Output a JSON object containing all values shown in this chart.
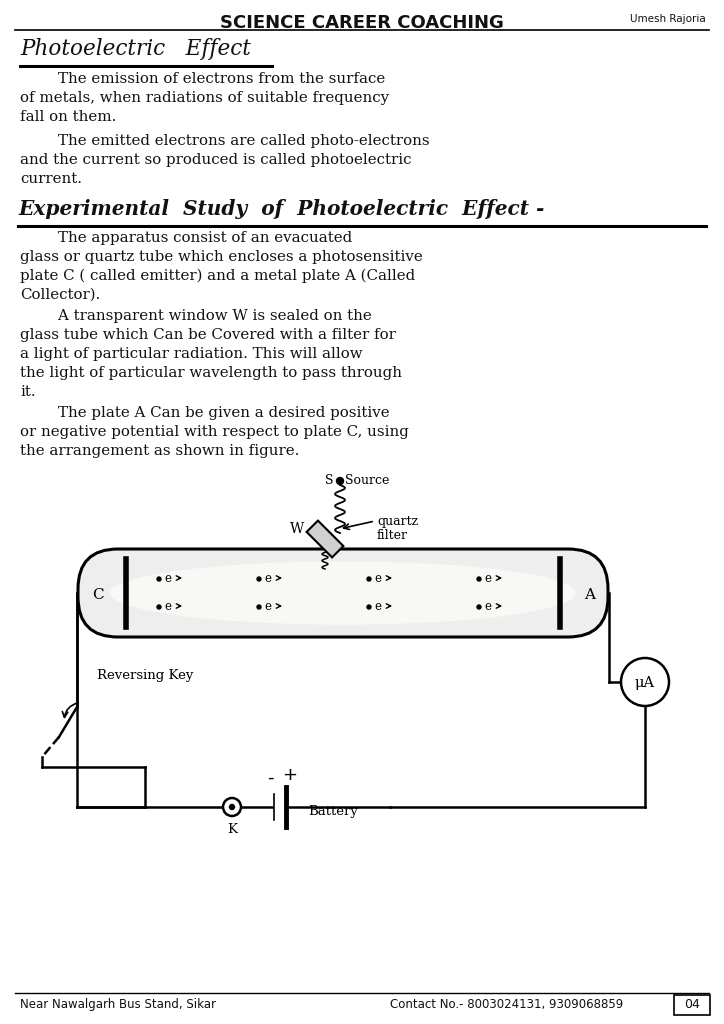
{
  "bg_color": "#ffffff",
  "header_title": "SCIENCE CAREER COACHING",
  "header_subtitle": "Umesh Rajoria",
  "section1_title": "Photoelectric   Effect",
  "section2_title": "Experimental  Study  of  Photoelectric  Effect -",
  "para1_lines": [
    "        The emission of electrons from the surface",
    "of metals, when radiations of suitable frequency",
    "fall on them."
  ],
  "para2_lines": [
    "        The emitted electrons are called photo-electrons",
    "and the current so produced is called photoelectric",
    "current."
  ],
  "para3_lines": [
    "        The apparatus consist of an evacuated",
    "glass or quartz tube which encloses a photosensitive",
    "plate C ( called emitter) and a metal plate A (Called",
    "Collector)."
  ],
  "para4_lines": [
    "        A transparent window W is sealed on the",
    "glass tube which Can be Covered with a filter for",
    "a light of particular radiation. This will allow",
    "the light of particular wavelength to pass through",
    "it."
  ],
  "para5_lines": [
    "        The plate A Can be given a desired positive",
    "or negative potential with respect to plate C, using",
    "the arrangement as shown in figure."
  ],
  "footer_left": "Near Nawalgarh Bus Stand, Sikar",
  "footer_contact": "Contact No.- 8003024131, 9309068859",
  "footer_page": "04",
  "text_color": "#111111",
  "line_color": "#000000"
}
